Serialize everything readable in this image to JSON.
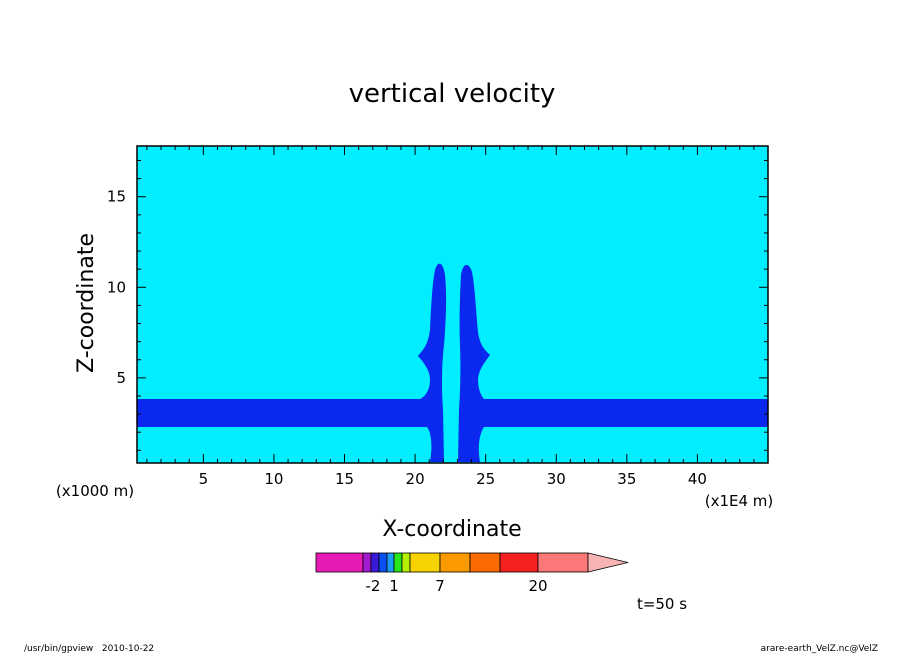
{
  "chart_data": {
    "type": "heatmap",
    "title": "vertical velocity",
    "xlabel": "X-coordinate",
    "ylabel": "Z-coordinate",
    "x_unit": "(x1E4 m)",
    "y_unit": "(x1000 m)",
    "xlim": [
      0.3,
      45
    ],
    "ylim": [
      0.3,
      17.8
    ],
    "x_ticks": [
      "5",
      "10",
      "15",
      "20",
      "25",
      "30",
      "35",
      "40"
    ],
    "y_ticks": [
      "5",
      "10",
      "15"
    ],
    "time_label": "t=50 s",
    "background_color": "#00eeff",
    "feature_color": "#0a28f0",
    "colorbar": {
      "colors": [
        "#e61ab4",
        "#a21ad0",
        "#3a1ad8",
        "#0a50f0",
        "#19a0f5",
        "#28e61c",
        "#b4f000",
        "#f5d200",
        "#fa9a00",
        "#fa6a00",
        "#f52020",
        "#fa7878",
        "#f8b4b4"
      ],
      "tick_labels": [
        "-2",
        "1",
        "7",
        "20"
      ]
    }
  },
  "footer": {
    "left": "/usr/bin/gpview   2010-10-22",
    "right": "arare-earth_VelZ.nc@VelZ"
  }
}
